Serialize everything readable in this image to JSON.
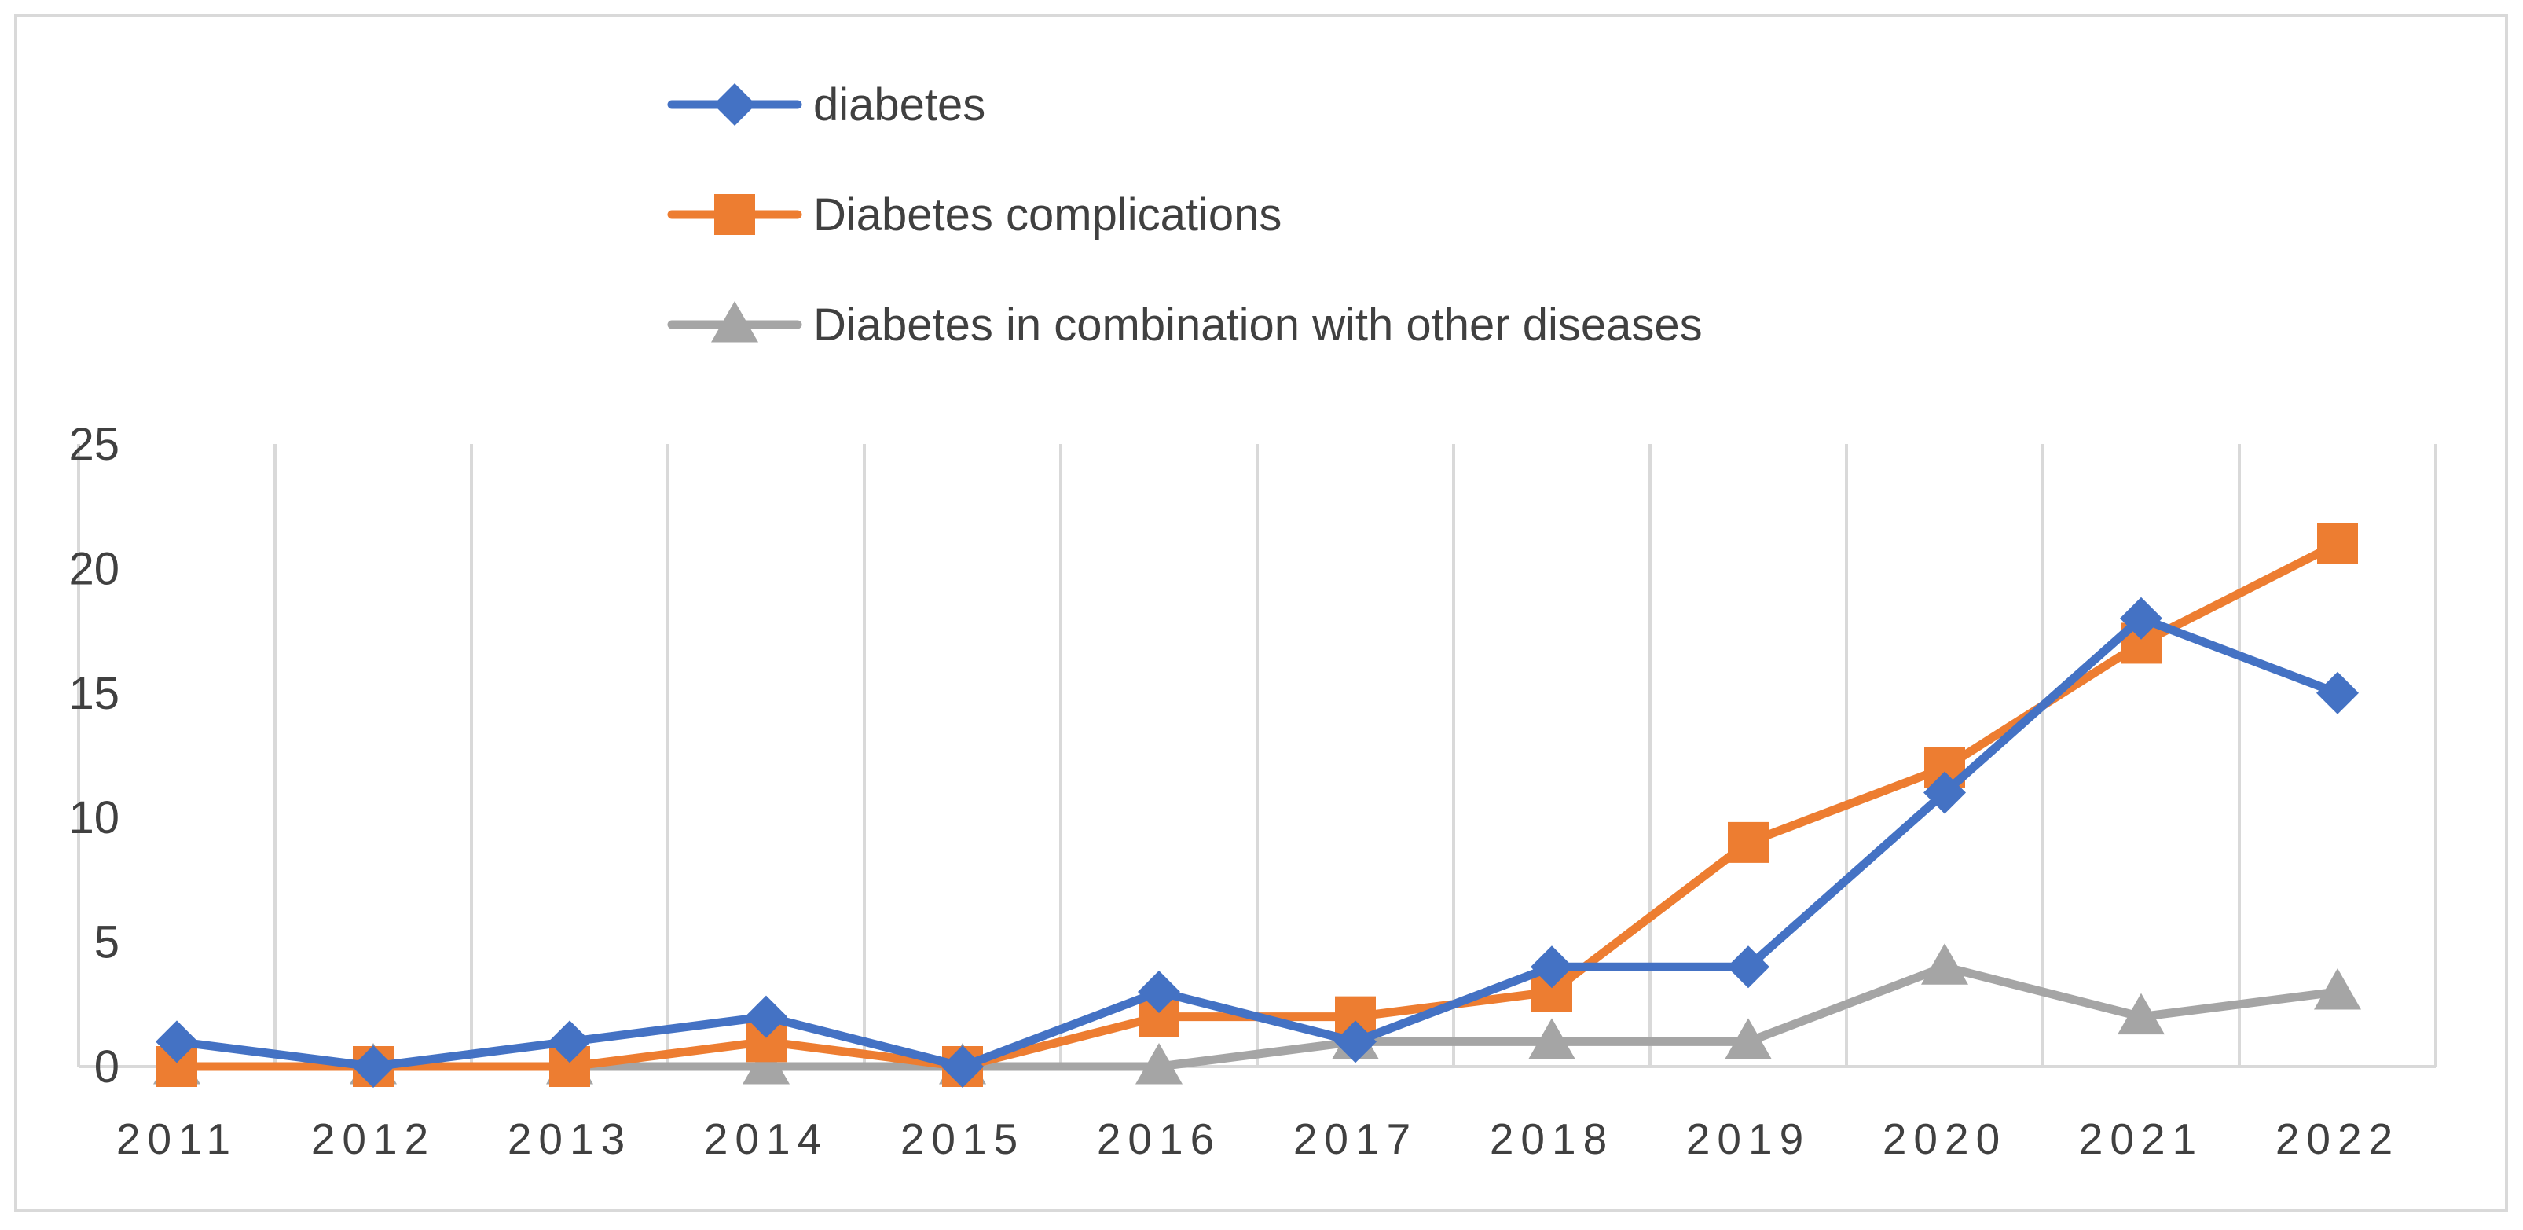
{
  "chart_data": {
    "type": "line",
    "title": "",
    "xlabel": "",
    "ylabel": "",
    "categories": [
      "2011",
      "2012",
      "2013",
      "2014",
      "2015",
      "2016",
      "2017",
      "2018",
      "2019",
      "2020",
      "2021",
      "2022"
    ],
    "ylim": [
      0,
      25
    ],
    "yticks": [
      0,
      5,
      10,
      15,
      20,
      25
    ],
    "grid": "vertical",
    "legend_position": "top",
    "series": [
      {
        "name": "diabetes",
        "color": "#4472C4",
        "marker": "diamond",
        "values": [
          1,
          0,
          1,
          2,
          0,
          3,
          1,
          4,
          4,
          11,
          18,
          15
        ]
      },
      {
        "name": "Diabetes complications",
        "color": "#ED7D31",
        "marker": "square",
        "values": [
          0,
          0,
          0,
          1,
          0,
          2,
          2,
          3,
          9,
          12,
          17,
          21
        ]
      },
      {
        "name": "Diabetes in combination with other diseases",
        "color": "#A5A5A5",
        "marker": "triangle",
        "values": [
          0,
          0,
          0,
          0,
          0,
          0,
          1,
          1,
          1,
          4,
          2,
          3
        ]
      }
    ]
  }
}
